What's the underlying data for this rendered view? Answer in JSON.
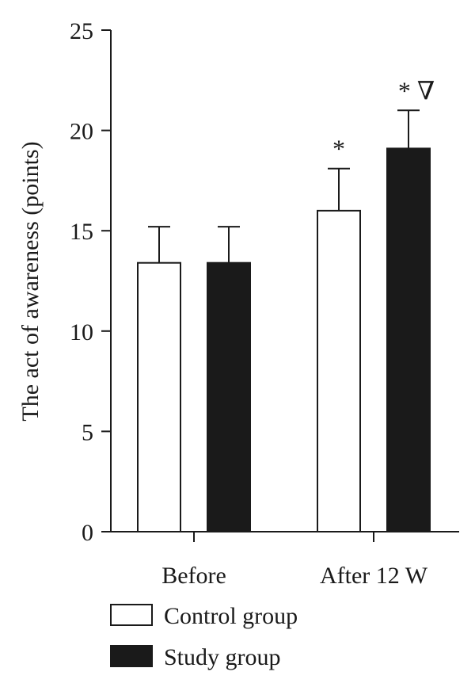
{
  "chart_data": {
    "type": "bar",
    "ylabel": "The act of awareness (points)",
    "ylim": [
      0,
      25
    ],
    "yticks": [
      0,
      5,
      10,
      15,
      20,
      25
    ],
    "categories": [
      "Before",
      "After 12 W"
    ],
    "series": [
      {
        "name": "Control group",
        "color": "#ffffff",
        "values": [
          13.4,
          16.0
        ],
        "errors": [
          1.8,
          2.1
        ],
        "annotations": [
          "",
          "*"
        ]
      },
      {
        "name": "Study group",
        "color": "#1a1a1a",
        "values": [
          13.4,
          19.1
        ],
        "errors": [
          1.8,
          1.9
        ],
        "annotations": [
          "",
          "* ∇"
        ]
      }
    ],
    "legend_position": "bottom-left",
    "grid": false
  }
}
